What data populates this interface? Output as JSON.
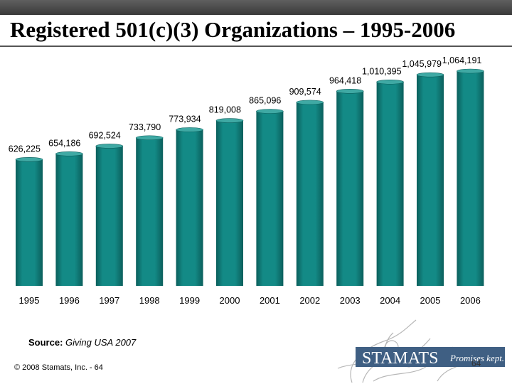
{
  "slide": {
    "title": "Registered 501(c)(3) Organizations – 1995-2006",
    "source_label": "Source:",
    "source_value": "Giving USA 2007",
    "copyright": "© 2008 Stamats, Inc. - 64",
    "slide_number": "64"
  },
  "logo": {
    "brand": "STAMATS",
    "tagline": "Promises kept."
  },
  "colors": {
    "bar": "#138a86",
    "bar_dark": "#0b5f5c",
    "bar_top": "#3fa9a4",
    "logo_bar": "#3f5f83"
  },
  "chart_data": {
    "type": "bar",
    "categories": [
      "1995",
      "1996",
      "1997",
      "1998",
      "1999",
      "2000",
      "2001",
      "2002",
      "2003",
      "2004",
      "2005",
      "2006"
    ],
    "values": [
      626225,
      654186,
      692524,
      733790,
      773934,
      819008,
      865096,
      909574,
      964418,
      1010395,
      1045979,
      1064191
    ],
    "data_labels": [
      "626,225",
      "654,186",
      "692,524",
      "733,790",
      "773,934",
      "819,008",
      "865,096",
      "909,574",
      "964,418",
      "1,010,395",
      "1,045,979",
      "1,064,191"
    ],
    "title": "",
    "xlabel": "",
    "ylabel": "",
    "ylim": [
      0,
      1064191
    ],
    "grid": false,
    "legend": "none"
  }
}
